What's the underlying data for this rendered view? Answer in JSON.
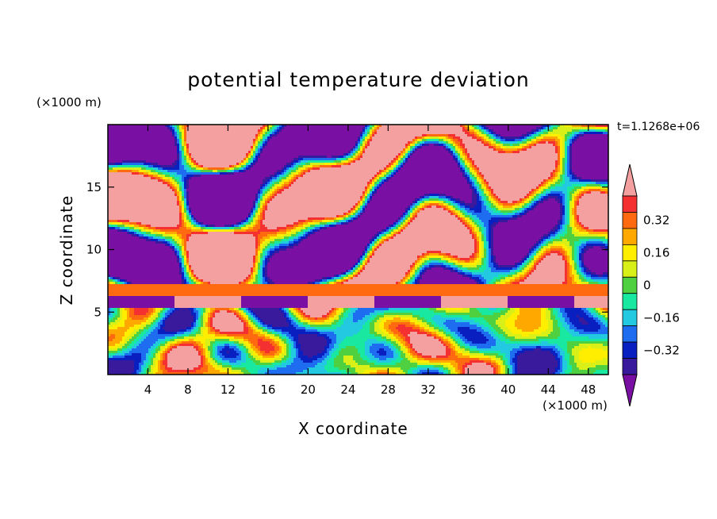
{
  "chart_data": {
    "type": "heatmap",
    "title": "potential temperature deviation",
    "xlabel": "X coordinate",
    "ylabel": "Z coordinate",
    "x_unit": "(×1000 m)",
    "z_unit": "(×1000 m)",
    "time_label": "t=1.1268e+06",
    "xlim": [
      0,
      50
    ],
    "ylim": [
      0,
      20
    ],
    "x_ticks": [
      4,
      8,
      12,
      16,
      20,
      24,
      28,
      32,
      36,
      40,
      44,
      48
    ],
    "y_ticks": [
      5,
      10,
      15
    ],
    "colorbar": {
      "levels": [
        -0.4,
        -0.32,
        -0.24,
        -0.16,
        -0.08,
        0,
        0.08,
        0.16,
        0.24,
        0.32,
        0.4
      ],
      "tick_values": [
        0.32,
        0.16,
        0,
        -0.16,
        -0.32
      ],
      "tick_labels": [
        "0.32",
        "0.16",
        "0",
        "−0.16",
        "−0.32"
      ],
      "colors": [
        "#7a0fa3",
        "#3a1a9c",
        "#0a1fbf",
        "#1e6cf0",
        "#22c9e0",
        "#18e8a0",
        "#4fd040",
        "#d8f018",
        "#ffee00",
        "#ffa800",
        "#ff6a10",
        "#f43030",
        "#f4a0a0"
      ],
      "extend": "both"
    },
    "bands": [
      {
        "z0": 17.5,
        "z1": 20,
        "pattern": "mixed-upper"
      },
      {
        "z0": 14.0,
        "z1": 17.5,
        "pattern": "mixed-upper"
      },
      {
        "z0": 9.0,
        "z1": 14.0,
        "pattern": "mixed-mid"
      },
      {
        "z0": 6.3,
        "z1": 7.3,
        "pattern": "inversion"
      },
      {
        "z0": 5.3,
        "z1": 6.3,
        "pattern": "domes"
      },
      {
        "z0": 0,
        "z1": 5.3,
        "pattern": "turbulent"
      }
    ]
  }
}
